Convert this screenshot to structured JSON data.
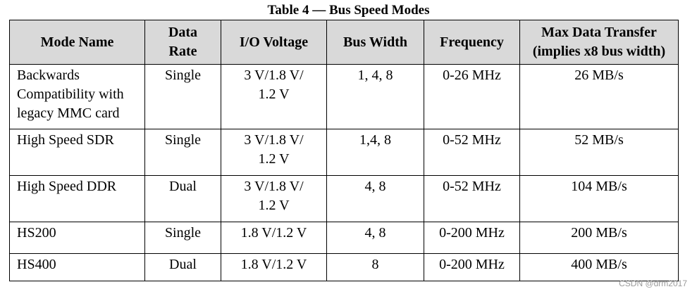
{
  "table": {
    "caption": "Table 4 — Bus Speed Modes",
    "headers": [
      "Mode Name",
      "Data\nRate",
      "I/O Voltage",
      "Bus Width",
      "Frequency",
      "Max Data Transfer\n(implies x8 bus width)"
    ],
    "rows": [
      [
        "Backwards\nCompatibility with\nlegacy MMC card",
        "Single",
        "3 V/1.8 V/\n1.2 V",
        "1, 4, 8",
        "0-26 MHz",
        "26 MB/s"
      ],
      [
        "High Speed SDR",
        "Single",
        "3 V/1.8 V/\n1.2 V",
        "1,4, 8",
        "0-52 MHz",
        "52 MB/s"
      ],
      [
        "High Speed DDR",
        "Dual",
        "3 V/1.8 V/\n1.2 V",
        "4, 8",
        "0-52 MHz",
        "104 MB/s"
      ],
      [
        "HS200",
        "Single",
        "1.8 V/1.2 V",
        "4, 8",
        "0-200 MHz",
        "200 MB/s"
      ],
      [
        "HS400",
        "Dual",
        "1.8 V/1.2 V",
        "8",
        "0-200 MHz",
        "400 MB/s"
      ]
    ]
  },
  "watermark": "CSDN @drm2017"
}
